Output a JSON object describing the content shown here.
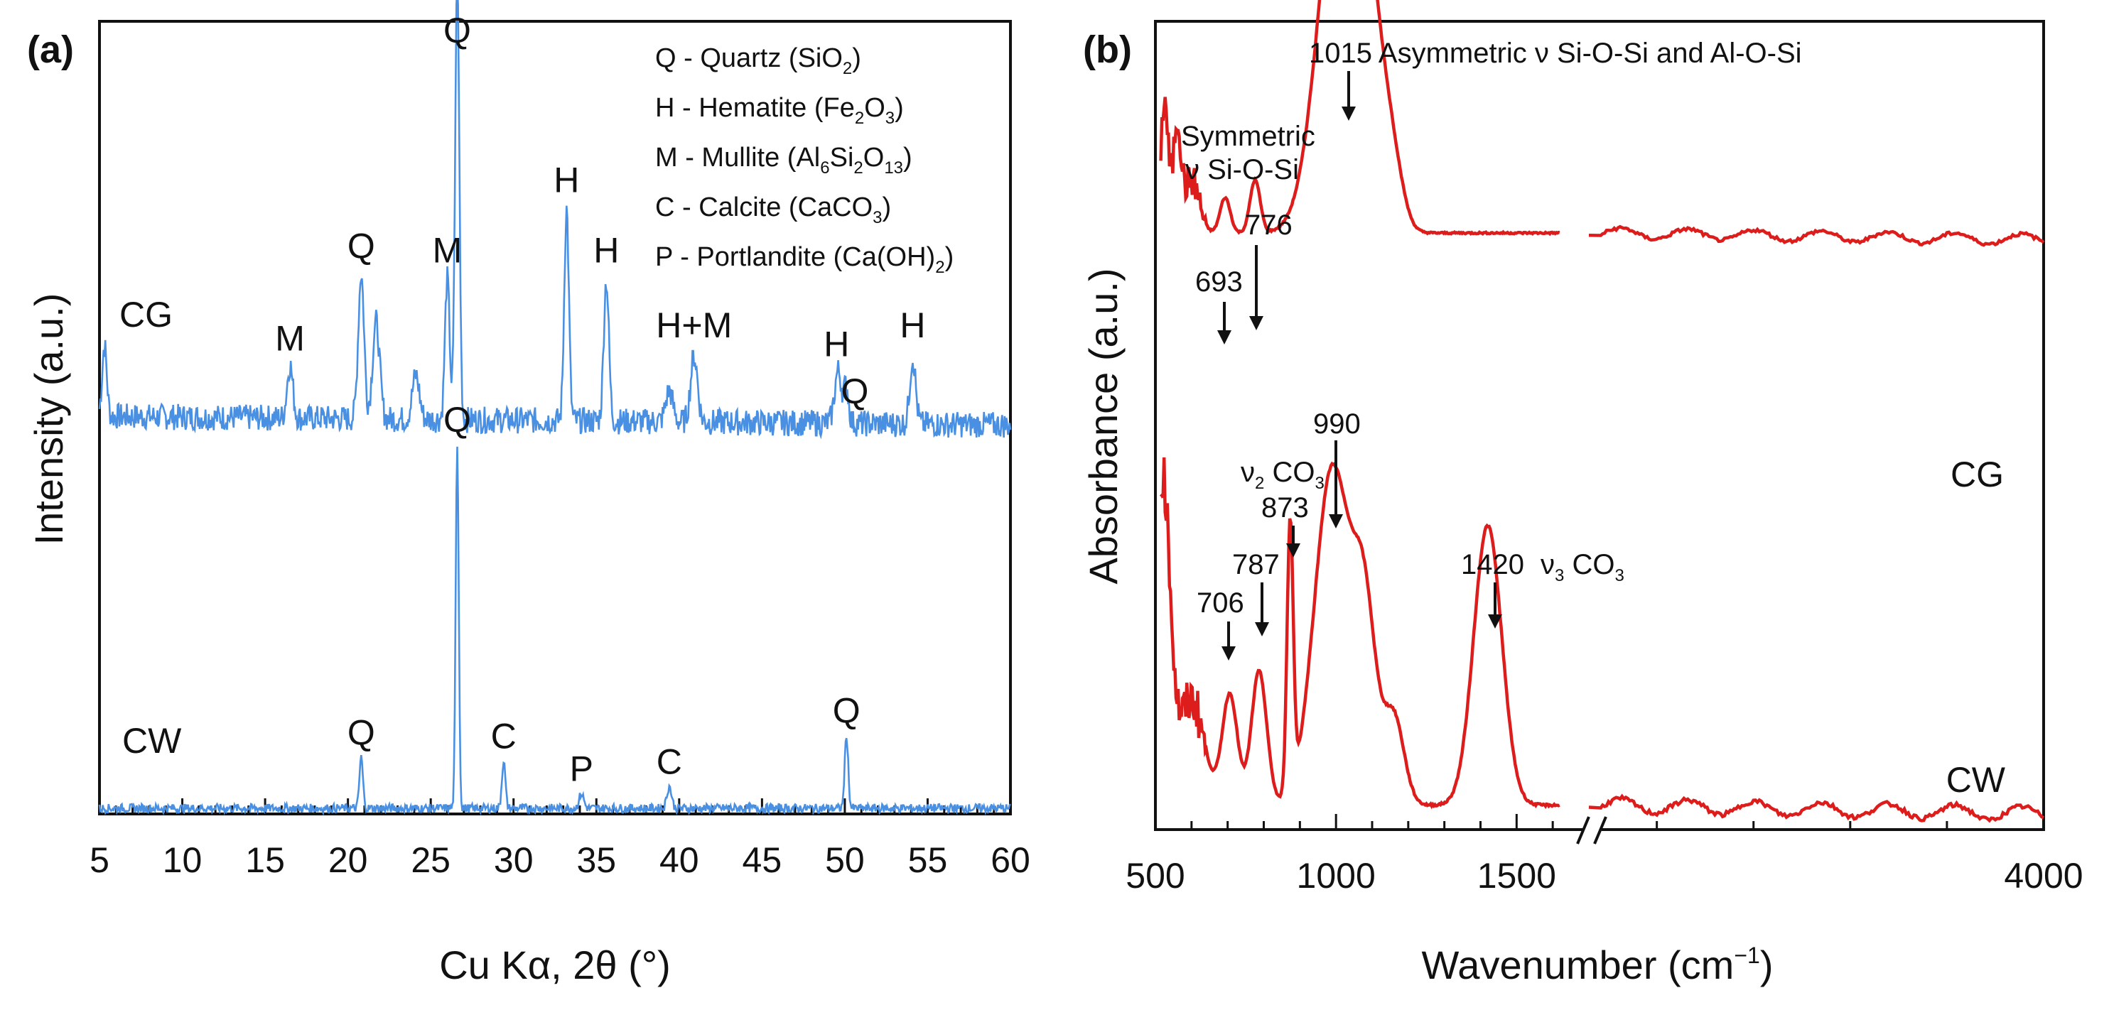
{
  "chart_data": [
    {
      "panel": "(a)",
      "type": "line",
      "xlabel": "Cu Kα, 2θ (°)",
      "ylabel": "Intensity (a.u.)",
      "xlim": [
        5,
        60
      ],
      "xticks": [
        "5",
        "10",
        "15",
        "20",
        "25",
        "30",
        "35",
        "40",
        "45",
        "50",
        "55",
        "60"
      ],
      "color": "#4a90e2",
      "legend": [
        {
          "text": "Q - Quartz (SiO",
          "subs": [
            "2",
            ")"
          ]
        },
        {
          "text": "H - Hematite (Fe",
          "subs": [
            "2",
            "O",
            "3",
            ")"
          ]
        },
        {
          "text": "M - Mullite (Al",
          "subs": [
            "6",
            "Si",
            "2",
            "O",
            "13",
            ")"
          ]
        },
        {
          "text": "C - Calcite (CaCO",
          "subs": [
            "3",
            ")"
          ]
        },
        {
          "text": "P - Portlandite (Ca(OH)",
          "subs": [
            "2",
            ")"
          ]
        }
      ],
      "series": [
        {
          "name": "CG",
          "baseline": 0.62,
          "noise": 0.03,
          "peaks": [
            [
              5.3,
              0.16,
              0.2
            ],
            [
              16.5,
              0.12,
              0.25
            ],
            [
              20.8,
              0.33,
              0.25
            ],
            [
              21.7,
              0.22,
              0.3
            ],
            [
              24.1,
              0.1,
              0.3
            ],
            [
              26.0,
              0.32,
              0.2
            ],
            [
              26.6,
              1.0,
              0.18
            ],
            [
              33.2,
              0.48,
              0.2
            ],
            [
              35.6,
              0.32,
              0.22
            ],
            [
              39.4,
              0.07,
              0.3
            ],
            [
              40.9,
              0.15,
              0.3
            ],
            [
              49.6,
              0.12,
              0.3
            ],
            [
              50.1,
              0.08,
              0.2
            ],
            [
              54.1,
              0.15,
              0.25
            ]
          ]
        },
        {
          "name": "CW",
          "baseline": 0.02,
          "noise": 0.012,
          "peaks": [
            [
              20.8,
              0.14,
              0.15
            ],
            [
              26.6,
              1.0,
              0.13
            ],
            [
              29.4,
              0.13,
              0.15
            ],
            [
              34.1,
              0.04,
              0.2
            ],
            [
              39.4,
              0.06,
              0.2
            ],
            [
              50.1,
              0.2,
              0.15
            ]
          ]
        }
      ],
      "annotations": [
        {
          "text": "M",
          "x": 16.5,
          "series": "CG"
        },
        {
          "text": "Q",
          "x": 20.8,
          "series": "CG"
        },
        {
          "text": "M",
          "x": 26.0,
          "series": "CG"
        },
        {
          "text": "Q",
          "x": 26.6,
          "series": "CG"
        },
        {
          "text": "H",
          "x": 33.2,
          "series": "CG"
        },
        {
          "text": "H",
          "x": 35.6,
          "series": "CG"
        },
        {
          "text": "H+M",
          "x": 40.9,
          "series": "CG"
        },
        {
          "text": "H",
          "x": 49.5,
          "series": "CG"
        },
        {
          "text": "Q",
          "x": 50.6,
          "series": "CG"
        },
        {
          "text": "H",
          "x": 54.1,
          "series": "CG"
        },
        {
          "text": "Q",
          "x": 20.8,
          "series": "CW"
        },
        {
          "text": "Q",
          "x": 26.6,
          "series": "CW"
        },
        {
          "text": "C",
          "x": 29.4,
          "series": "CW"
        },
        {
          "text": "P",
          "x": 34.1,
          "series": "CW"
        },
        {
          "text": "C",
          "x": 39.4,
          "series": "CW"
        },
        {
          "text": "Q",
          "x": 50.1,
          "series": "CW"
        }
      ]
    },
    {
      "panel": "(b)",
      "type": "line",
      "xlabel_main": "Wavenumber (cm",
      "xlabel_sup": "−1",
      "xlabel_end": ")",
      "ylabel": "Absorbance (a.u.)",
      "x_segments": [
        [
          500,
          1700
        ],
        [
          1700,
          4000
        ]
      ],
      "xticks": [
        "500",
        "1000",
        "1500",
        "4000"
      ],
      "axis_break": true,
      "color": "#dd1c1c",
      "series": [
        {
          "name": "CG",
          "baseline": 0.6,
          "tail": 0.6,
          "bands": [
            [
              525,
              0.3,
              15
            ],
            [
              560,
              0.24,
              15
            ],
            [
              600,
              0.12,
              30
            ],
            [
              693,
              0.08,
              20
            ],
            [
              776,
              0.12,
              20
            ],
            [
              1015,
              0.88,
              85
            ],
            [
              1100,
              0.3,
              55
            ],
            [
              1160,
              0.1,
              40
            ]
          ]
        },
        {
          "name": "CW",
          "baseline": 0.02,
          "tail": 0.02,
          "bands": [
            [
              520,
              0.55,
              30
            ],
            [
              600,
              0.18,
              50
            ],
            [
              706,
              0.19,
              30
            ],
            [
              787,
              0.23,
              30
            ],
            [
              873,
              0.46,
              12
            ],
            [
              990,
              0.58,
              70
            ],
            [
              1080,
              0.3,
              45
            ],
            [
              1160,
              0.15,
              40
            ],
            [
              1420,
              0.48,
              55
            ]
          ]
        }
      ],
      "annotations": [
        {
          "text": "Symmetric",
          "wn": 0
        },
        {
          "text": "ν Si-O-Si",
          "wn": 0
        },
        {
          "text": "693",
          "wn": 693
        },
        {
          "text": "776",
          "wn": 776
        },
        {
          "text": "1015 Asymmetric ν Si-O-Si and Al-O-Si",
          "wn": 1015
        },
        {
          "text": "990",
          "wn": 990
        },
        {
          "text": "873",
          "wn": 873
        },
        {
          "text": "787",
          "wn": 787
        },
        {
          "text": "706",
          "wn": 706
        },
        {
          "text": "1420",
          "wn": 1420
        },
        {
          "text": "ν",
          "sub": "2",
          "tail": " CO",
          "sub2": "3"
        },
        {
          "text": "ν",
          "sub": "3",
          "tail": " CO",
          "sub2": "3"
        }
      ]
    }
  ]
}
